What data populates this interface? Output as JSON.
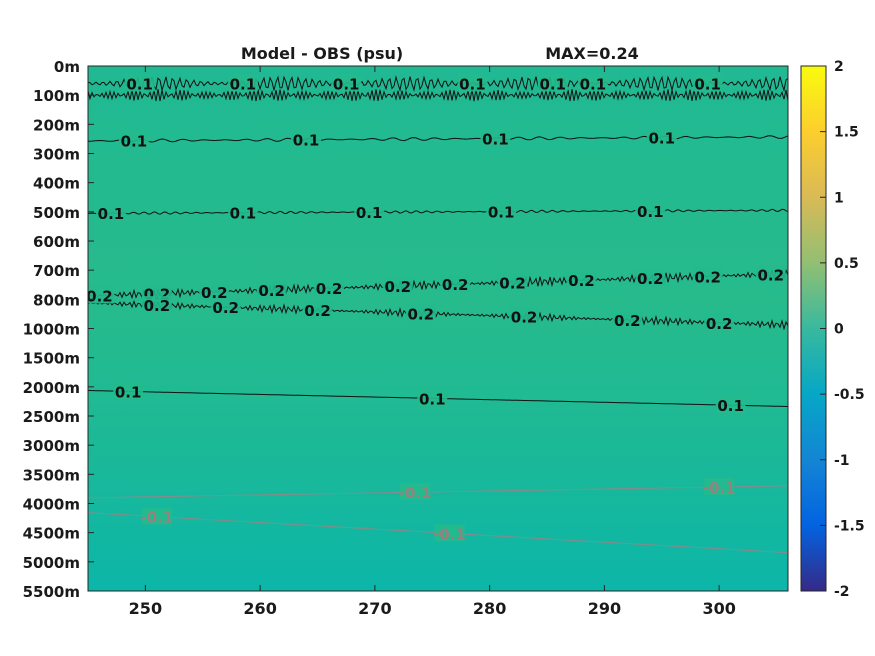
{
  "chart_data": {
    "type": "heatmap",
    "title": "Model - OBS (psu)",
    "annotation": "MAX=0.24",
    "x_ticks": [
      250,
      260,
      270,
      280,
      290,
      300
    ],
    "xlim": [
      245,
      306
    ],
    "y_ticks": [
      "0m",
      "100m",
      "200m",
      "300m",
      "400m",
      "500m",
      "600m",
      "700m",
      "800m",
      "1000m",
      "1500m",
      "2000m",
      "2500m",
      "3000m",
      "3500m",
      "4000m",
      "4500m",
      "5000m",
      "5500m"
    ],
    "colorbar": {
      "range": [
        -2,
        2
      ],
      "ticks": [
        "2",
        "1.5",
        "1",
        "0.5",
        "0",
        "-0.5",
        "-1",
        "-1.5",
        "-2"
      ],
      "colormap": "parula"
    },
    "background_color": "#22ba8e",
    "contours": [
      {
        "level": 0.1,
        "depth": "60m",
        "labels": [
          {
            "x": 249.5,
            "text": "0.1"
          },
          {
            "x": 258.5,
            "text": "0.1"
          },
          {
            "x": 267.5,
            "text": "0.1"
          },
          {
            "x": 278.5,
            "text": "0.1"
          },
          {
            "x": 285.5,
            "text": "0.1"
          },
          {
            "x": 289.0,
            "text": "0.1"
          },
          {
            "x": 299.0,
            "text": "0.1"
          }
        ]
      },
      {
        "level": 0.1,
        "depth": "250m",
        "labels": [
          {
            "x": 249.0,
            "text": "0.1"
          },
          {
            "x": 264.0,
            "text": "0.1"
          },
          {
            "x": 280.5,
            "text": "0.1"
          },
          {
            "x": 295.0,
            "text": "0.1"
          }
        ]
      },
      {
        "level": 0.1,
        "depth": "500m",
        "labels": [
          {
            "x": 247.0,
            "text": "0.1"
          },
          {
            "x": 258.5,
            "text": "0.1"
          },
          {
            "x": 269.5,
            "text": "0.1"
          },
          {
            "x": 281.0,
            "text": "0.1"
          },
          {
            "x": 294.0,
            "text": "0.1"
          }
        ]
      },
      {
        "level": 0.2,
        "depth": "750m",
        "labels": [
          {
            "x": 246.0,
            "text": "0.2"
          },
          {
            "x": 251.0,
            "text": "0.2"
          },
          {
            "x": 256.0,
            "text": "0.2"
          },
          {
            "x": 261.0,
            "text": "0.2"
          },
          {
            "x": 266.0,
            "text": "0.2"
          },
          {
            "x": 272.0,
            "text": "0.2"
          },
          {
            "x": 277.0,
            "text": "0.2"
          },
          {
            "x": 282.0,
            "text": "0.2"
          },
          {
            "x": 288.0,
            "text": "0.2"
          },
          {
            "x": 294.0,
            "text": "0.2"
          },
          {
            "x": 299.0,
            "text": "0.2"
          },
          {
            "x": 304.5,
            "text": "0.2"
          }
        ]
      },
      {
        "level": 0.2,
        "depth": "900m",
        "labels": [
          {
            "x": 251.0,
            "text": "0.2"
          },
          {
            "x": 257.0,
            "text": "0.2"
          },
          {
            "x": 265.0,
            "text": "0.2"
          },
          {
            "x": 274.0,
            "text": "0.2"
          },
          {
            "x": 283.0,
            "text": "0.2"
          },
          {
            "x": 292.0,
            "text": "0.2"
          },
          {
            "x": 300.0,
            "text": "0.2"
          }
        ]
      },
      {
        "level": 0.1,
        "depth": "2200m",
        "labels": [
          {
            "x": 248.5,
            "text": "0.1"
          },
          {
            "x": 275.0,
            "text": "0.1"
          },
          {
            "x": 301.0,
            "text": "0.1"
          }
        ]
      },
      {
        "level": -0.1,
        "depth": "3800m",
        "labels": [
          {
            "x": 273.5,
            "text": "-0.1"
          },
          {
            "x": 300.0,
            "text": "-0.1"
          }
        ]
      },
      {
        "level": -0.1,
        "depth": "4500m",
        "labels": [
          {
            "x": 251.0,
            "text": "-0.1"
          },
          {
            "x": 276.5,
            "text": "-0.1"
          }
        ]
      }
    ]
  }
}
